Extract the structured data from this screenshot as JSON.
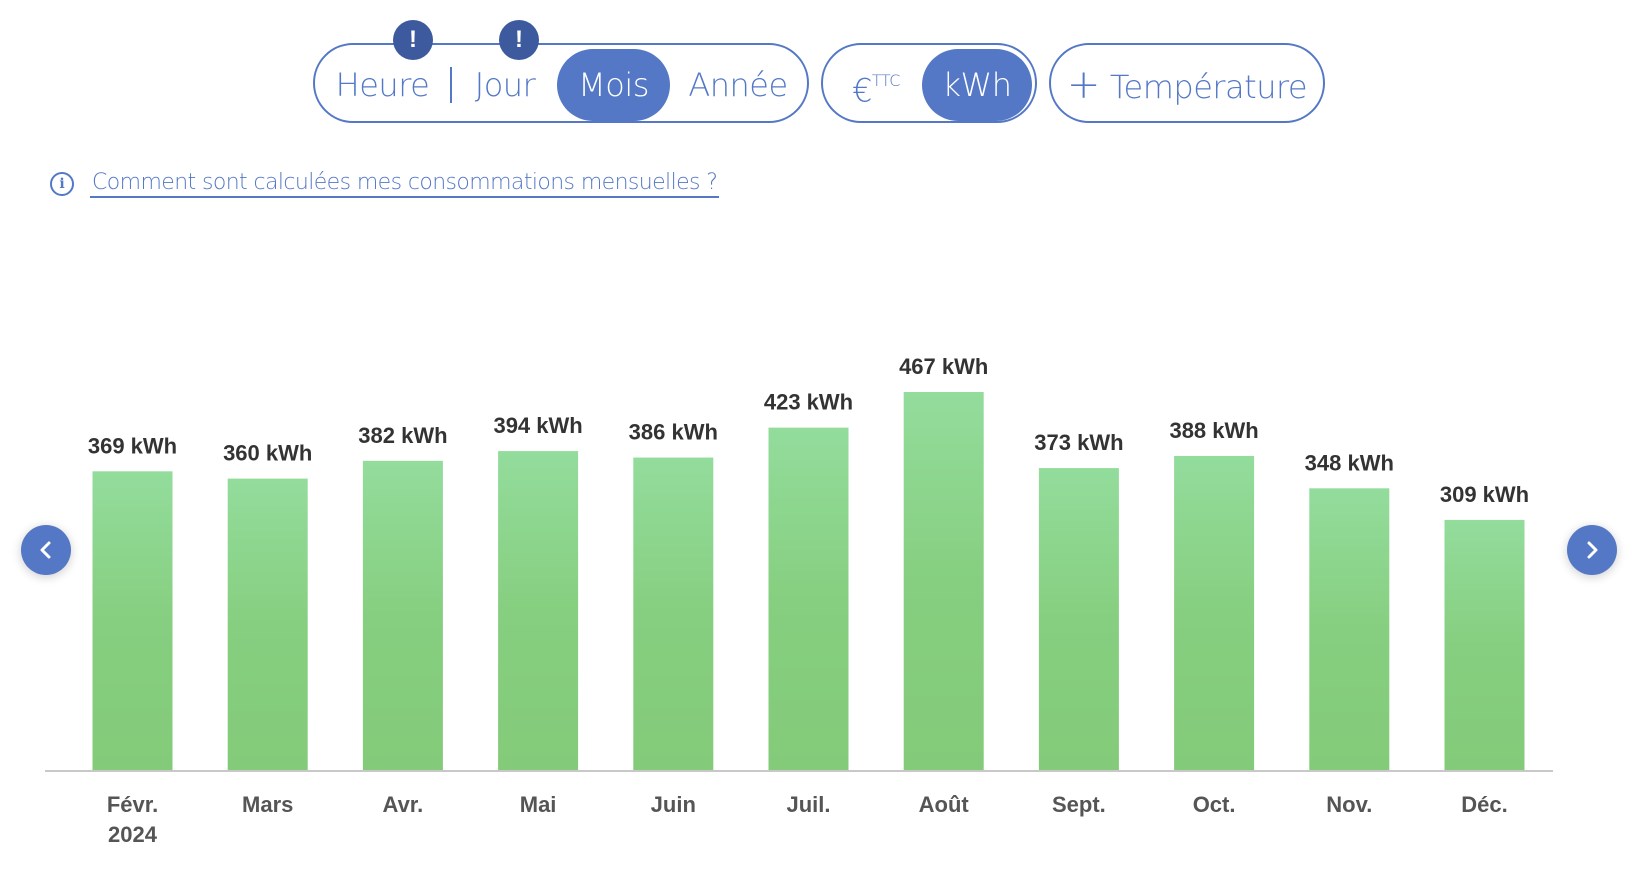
{
  "toolbar": {
    "period": {
      "options": [
        "Heure",
        "Jour",
        "Mois",
        "Année"
      ],
      "selected": "Mois",
      "badges": [
        "!",
        "!"
      ]
    },
    "unit": {
      "euro_label": "€",
      "euro_sup": "TTC",
      "kwh_label": "kWh",
      "selected": "kWh"
    },
    "temperature_label": "Température"
  },
  "info_link": "Comment sont calculées mes consommations mensuelles ?",
  "colors": {
    "accent": "#5478c6",
    "badge": "#3d5a9e",
    "bar_top": "#93dc9c",
    "bar_bottom": "#83cb79"
  },
  "chart_data": {
    "type": "bar",
    "categories": [
      "Févr.",
      "Mars",
      "Avr.",
      "Mai",
      "Juin",
      "Juil.",
      "Août",
      "Sept.",
      "Oct.",
      "Nov.",
      "Déc."
    ],
    "year_label": "2024",
    "values": [
      369,
      360,
      382,
      394,
      386,
      423,
      467,
      373,
      388,
      348,
      309
    ],
    "value_labels": [
      "369 kWh",
      "360 kWh",
      "382 kWh",
      "394 kWh",
      "386 kWh",
      "423 kWh",
      "467 kWh",
      "373 kWh",
      "388 kWh",
      "348 kWh",
      "309 kWh"
    ],
    "unit": "kWh",
    "ylim": [
      0,
      467
    ],
    "grid": false,
    "title": "",
    "xlabel": "",
    "ylabel": ""
  }
}
